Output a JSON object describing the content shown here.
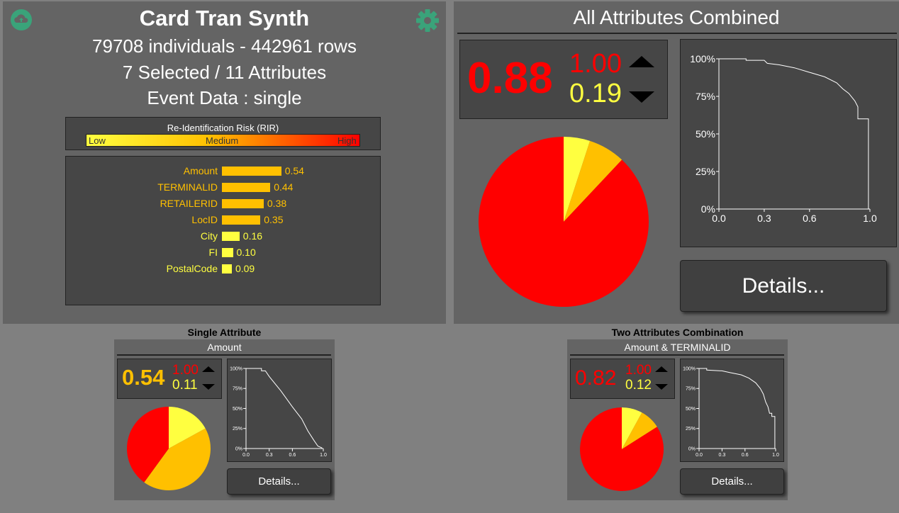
{
  "colors": {
    "high": "#ff0000",
    "medium": "#ffc000",
    "low": "#ffff40",
    "panel": "#646464",
    "dark": "#464646"
  },
  "header": {
    "title": "Card Tran Synth",
    "stats": "79708 individuals - 442961 rows",
    "selection": "7 Selected / 11 Attributes",
    "event": "Event Data : single",
    "left_icon": "cloud-upload-icon",
    "right_icon": "gear-icon"
  },
  "rir_legend": {
    "title": "Re-Identification Risk (RIR)",
    "low": "Low",
    "medium": "Medium",
    "high": "High"
  },
  "attributes": [
    {
      "name": "Amount",
      "value": 0.54,
      "label": "0.54"
    },
    {
      "name": "TERMINALID",
      "value": 0.44,
      "label": "0.44"
    },
    {
      "name": "RETAILERID",
      "value": 0.38,
      "label": "0.38"
    },
    {
      "name": "LocID",
      "value": 0.35,
      "label": "0.35"
    },
    {
      "name": "City",
      "value": 0.16,
      "label": "0.16"
    },
    {
      "name": "FI",
      "value": 0.1,
      "label": "0.10"
    },
    {
      "name": "PostalCode",
      "value": 0.09,
      "label": "0.09"
    }
  ],
  "combined": {
    "title": "All Attributes Combined",
    "score": "0.88",
    "max": "1.00",
    "min": "0.19",
    "details_label": "Details...",
    "pie": [
      {
        "level": "high",
        "fraction": 0.88
      },
      {
        "level": "medium",
        "fraction": 0.07
      },
      {
        "level": "low",
        "fraction": 0.05
      }
    ],
    "curve_ticks_y": [
      "100%",
      "75%",
      "50%",
      "25%",
      "0%"
    ],
    "curve_ticks_x": [
      "0.0",
      "0.3",
      "0.6",
      "1.0"
    ]
  },
  "single": {
    "header": "Single Attribute",
    "title": "Amount",
    "score": "0.54",
    "max": "1.00",
    "min": "0.11",
    "details_label": "Details...",
    "pie": [
      {
        "level": "high",
        "fraction": 0.4
      },
      {
        "level": "medium",
        "fraction": 0.43
      },
      {
        "level": "low",
        "fraction": 0.17
      }
    ],
    "curve_ticks_y": [
      "100%",
      "75%",
      "50%",
      "25%",
      "0%"
    ],
    "curve_ticks_x": [
      "0.0",
      "0.3",
      "0.6",
      "1.0"
    ]
  },
  "pair": {
    "header": "Two Attributes Combination",
    "title": "Amount & TERMINALID",
    "score": "0.82",
    "max": "1.00",
    "min": "0.12",
    "details_label": "Details...",
    "pie": [
      {
        "level": "high",
        "fraction": 0.84
      },
      {
        "level": "medium",
        "fraction": 0.08
      },
      {
        "level": "low",
        "fraction": 0.08
      }
    ],
    "curve_ticks_y": [
      "100%",
      "75%",
      "50%",
      "25%",
      "0%"
    ],
    "curve_ticks_x": [
      "0.0",
      "0.3",
      "0.6",
      "1.0"
    ]
  }
}
